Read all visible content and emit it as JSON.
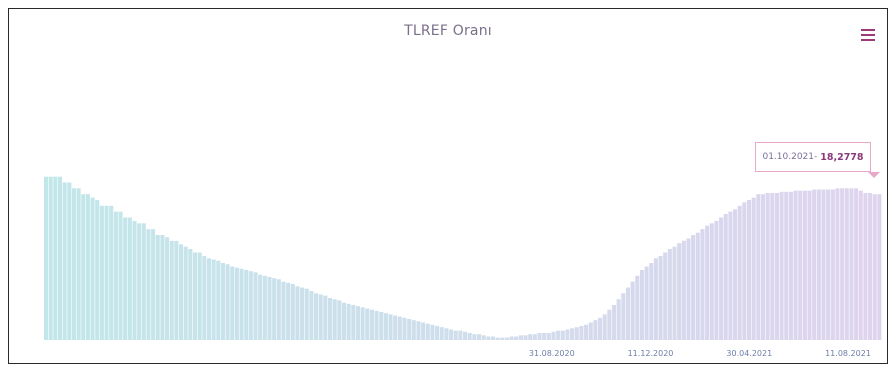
{
  "chart_data": {
    "type": "bar",
    "title": "TLREF Oranı",
    "x_ticks": [
      "",
      "",
      "",
      "",
      "",
      "31.08.2020",
      "11.12.2020",
      "30.04.2021",
      "11.08.2021"
    ],
    "ylim": [
      0,
      24
    ],
    "series": [
      {
        "values": [
          14,
          14,
          14,
          14,
          13.5,
          13.5,
          13,
          13,
          12.5,
          12.5,
          12.2,
          12.0,
          11.5,
          11.5,
          11.5,
          11.0,
          11.0,
          10.5,
          10.5,
          10.2,
          10.0,
          10.0,
          9.5,
          9.5,
          9.0,
          9.0,
          8.8,
          8.5,
          8.5,
          8.2,
          8.0,
          7.8,
          7.5,
          7.5,
          7.2,
          7.0,
          6.9,
          6.8,
          6.6,
          6.5,
          6.3,
          6.2,
          6.1,
          6.0,
          5.9,
          5.8,
          5.6,
          5.5,
          5.4,
          5.3,
          5.2,
          5.0,
          4.9,
          4.8,
          4.6,
          4.5,
          4.4,
          4.2,
          4.0,
          3.9,
          3.8,
          3.6,
          3.5,
          3.4,
          3.2,
          3.1,
          3.0,
          2.9,
          2.8,
          2.7,
          2.6,
          2.5,
          2.4,
          2.3,
          2.2,
          2.1,
          2.0,
          1.9,
          1.8,
          1.7,
          1.6,
          1.5,
          1.4,
          1.3,
          1.2,
          1.1,
          1.0,
          0.9,
          0.8,
          0.8,
          0.7,
          0.6,
          0.5,
          0.5,
          0.4,
          0.3,
          0.3,
          0.2,
          0.2,
          0.2,
          0.3,
          0.3,
          0.4,
          0.4,
          0.5,
          0.5,
          0.6,
          0.6,
          0.6,
          0.7,
          0.8,
          0.8,
          0.9,
          1.0,
          1.1,
          1.2,
          1.3,
          1.5,
          1.7,
          1.9,
          2.2,
          2.6,
          3.0,
          3.5,
          4.0,
          4.5,
          5.0,
          5.5,
          6.0,
          6.3,
          6.6,
          7.0,
          7.2,
          7.5,
          7.8,
          8.0,
          8.3,
          8.5,
          8.7,
          9.0,
          9.2,
          9.5,
          9.8,
          10.0,
          10.2,
          10.5,
          10.8,
          11.0,
          11.2,
          11.5,
          11.8,
          12.0,
          12.2,
          12.5,
          12.5,
          12.6,
          12.6,
          12.6,
          12.7,
          12.7,
          12.7,
          12.8,
          12.8,
          12.8,
          12.8,
          12.9,
          12.9,
          12.9,
          12.9,
          12.9,
          13.0,
          13.0,
          13.0,
          13.0,
          13.0,
          12.8,
          12.6,
          12.6,
          12.5,
          12.5
        ]
      }
    ],
    "grid": false,
    "legend": "none"
  },
  "tooltip": {
    "date": "01.10.2021",
    "separator": " - ",
    "value": "18,2778"
  },
  "colors": {
    "bar_left": "#8fd3d8",
    "bar_right": "#c3b0e0",
    "accent": "#9c3a7a",
    "tooltip_border": "#e8a9c9"
  },
  "icons": {
    "menu": "hamburger-menu-icon"
  }
}
